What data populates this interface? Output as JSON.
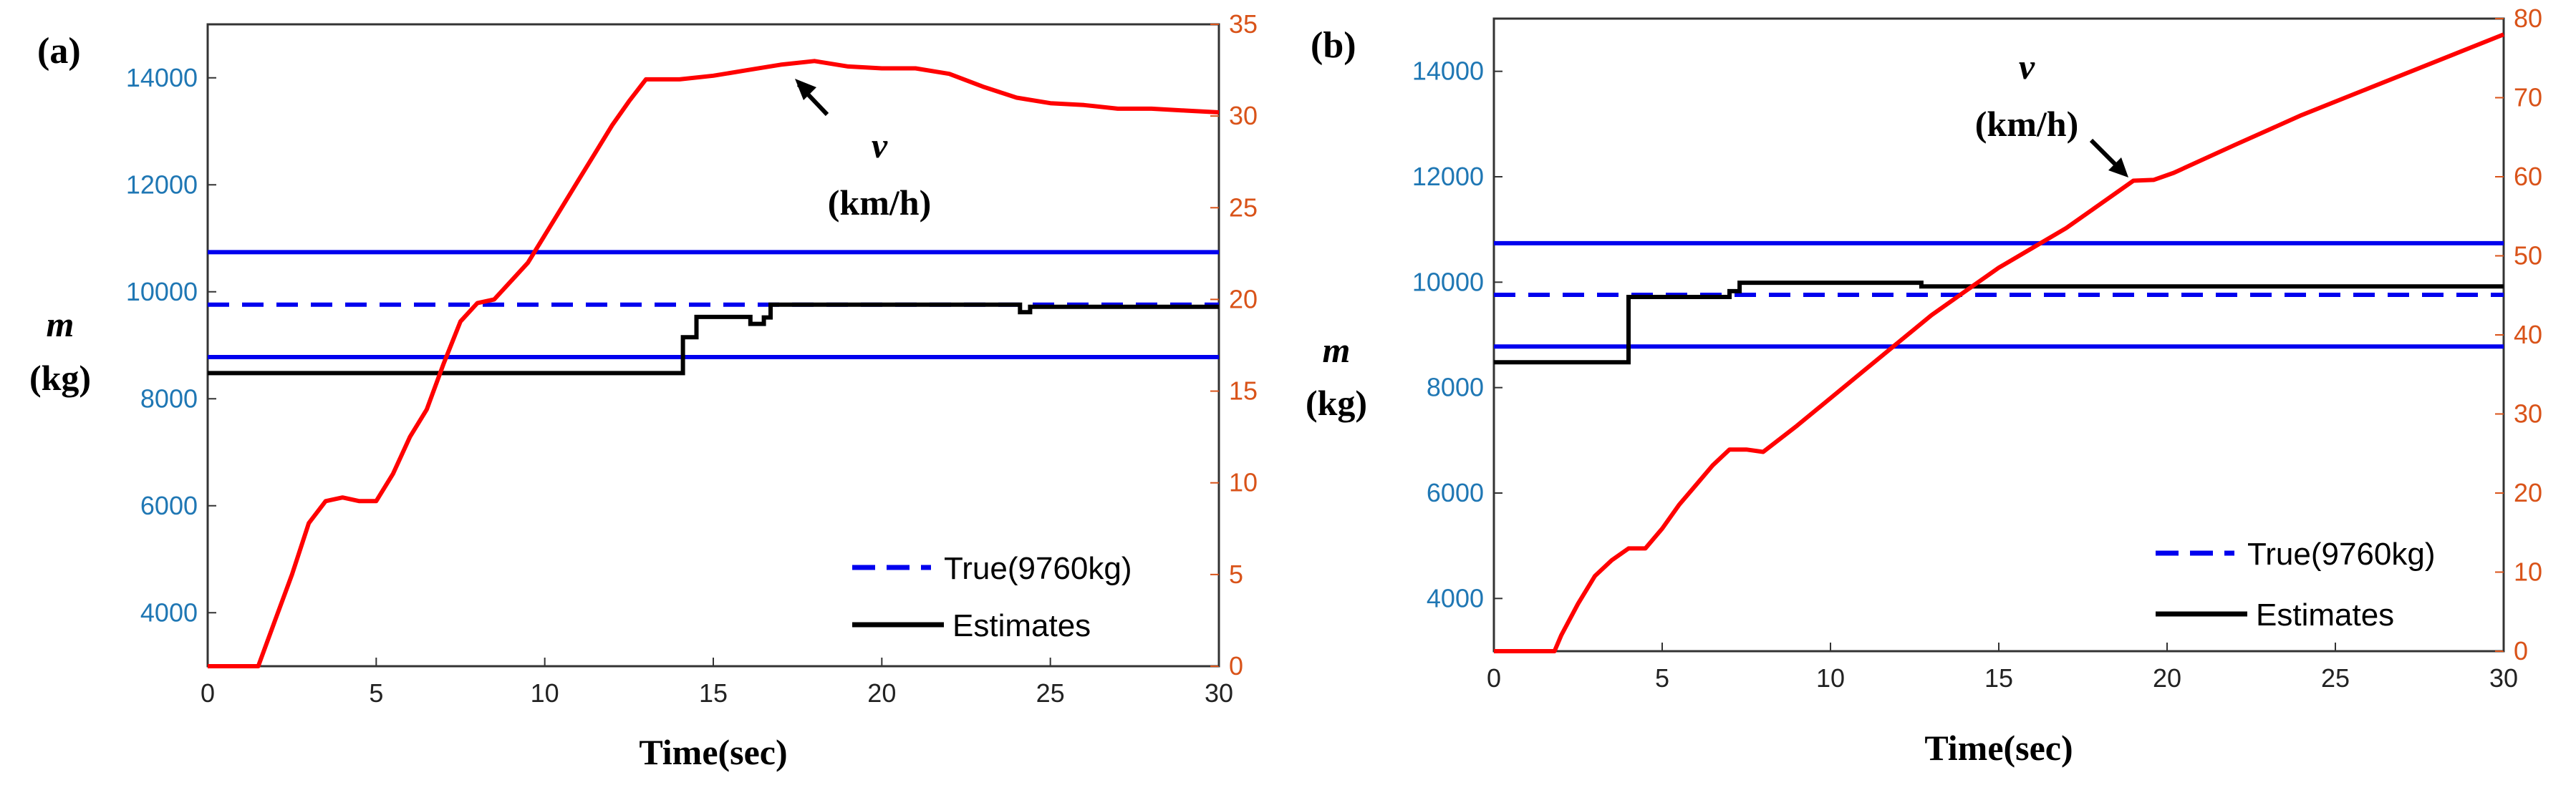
{
  "colors": {
    "bound": "#0000ee",
    "true": "#0000ee",
    "estimate": "#000000",
    "velocity": "#ff0000",
    "left_axis": "#1f77b4",
    "right_axis": "#d95319"
  },
  "chart_data": [
    {
      "type": "line",
      "panel_label": "(a)",
      "xlabel": "Time(sec)",
      "ylabel_var": "m",
      "ylabel_unit": "(kg)",
      "xlim": [
        0,
        30
      ],
      "ylim": [
        3000,
        15000
      ],
      "ylim_right": [
        0,
        35
      ],
      "x_ticks": [
        "0",
        "5",
        "10",
        "15",
        "20",
        "25",
        "30"
      ],
      "y_ticks": [
        "4000",
        "6000",
        "8000",
        "10000",
        "12000",
        "14000"
      ],
      "y_right_ticks": [
        "0",
        "5",
        "10",
        "15",
        "20",
        "25",
        "30",
        "35"
      ],
      "annotation": {
        "var": "v",
        "unit": "(km/h)",
        "x": 17.4,
        "y_right": 32.2
      },
      "legend": {
        "placement": "bottom-right",
        "entries": [
          "True(9760kg)",
          "Estimates"
        ]
      },
      "bounds": [
        10740,
        8780
      ],
      "true_value": 9760,
      "estimate": {
        "x": [
          0,
          14.1,
          14.1,
          14.5,
          14.5,
          16.1,
          16.1,
          16.5,
          16.5,
          16.7,
          16.7,
          24.1,
          24.1,
          24.4,
          24.4,
          30
        ],
        "y": [
          8480,
          8480,
          9150,
          9150,
          9530,
          9530,
          9400,
          9400,
          9520,
          9520,
          9760,
          9760,
          9620,
          9620,
          9720,
          9720
        ]
      },
      "velocity": {
        "x": [
          0,
          1.5,
          2.0,
          2.5,
          3.0,
          3.5,
          4.0,
          4.5,
          5.0,
          5.5,
          6.0,
          6.5,
          7.0,
          7.5,
          8.0,
          8.5,
          9.0,
          9.5,
          10.0,
          10.5,
          11.0,
          11.5,
          12.0,
          12.5,
          13.0,
          14.0,
          15.0,
          16.0,
          17.0,
          18.0,
          19.0,
          20.0,
          21.0,
          22.0,
          23.0,
          24.0,
          25.0,
          26.0,
          27.0,
          28.0,
          29.0,
          30.0
        ],
        "y": [
          0,
          0,
          2.5,
          5.0,
          7.8,
          9.0,
          9.2,
          9.0,
          9.0,
          10.5,
          12.5,
          14.0,
          16.5,
          18.8,
          19.8,
          20.0,
          21.0,
          22.0,
          23.5,
          25.0,
          26.5,
          28.0,
          29.5,
          30.8,
          32.0,
          32.0,
          32.2,
          32.5,
          32.8,
          33.0,
          32.7,
          32.6,
          32.6,
          32.3,
          31.6,
          31.0,
          30.7,
          30.6,
          30.4,
          30.4,
          30.3,
          30.2
        ]
      }
    },
    {
      "type": "line",
      "panel_label": "(b)",
      "xlabel": "Time(sec)",
      "ylabel_var": "m",
      "ylabel_unit": "(kg)",
      "xlim": [
        0,
        30
      ],
      "ylim": [
        3000,
        15000
      ],
      "ylim_right": [
        0,
        80
      ],
      "x_ticks": [
        "0",
        "5",
        "10",
        "15",
        "20",
        "25",
        "30"
      ],
      "y_ticks": [
        "4000",
        "6000",
        "8000",
        "10000",
        "12000",
        "14000"
      ],
      "y_right_ticks": [
        "0",
        "10",
        "20",
        "30",
        "40",
        "50",
        "60",
        "70",
        "80"
      ],
      "annotation": {
        "var": "v",
        "unit": "(km/h)",
        "x": 19.2,
        "y_right": 59.8
      },
      "legend": {
        "placement": "bottom-right",
        "entries": [
          "True(9760kg)",
          "Estimates"
        ]
      },
      "bounds": [
        10740,
        8780
      ],
      "true_value": 9760,
      "estimate": {
        "x": [
          0,
          4.0,
          4.0,
          7.0,
          7.0,
          7.3,
          7.3,
          12.7,
          12.7,
          30
        ],
        "y": [
          8480,
          8480,
          9720,
          9720,
          9830,
          9830,
          9990,
          9990,
          9920,
          9920
        ]
      },
      "velocity": {
        "x": [
          0,
          1.8,
          2.0,
          2.5,
          3.0,
          3.5,
          4.0,
          4.5,
          5.0,
          5.5,
          6.0,
          6.5,
          7.0,
          7.5,
          8.0,
          9.0,
          10.0,
          11.0,
          12.0,
          13.0,
          14.0,
          15.0,
          16.0,
          17.0,
          18.0,
          19.0,
          19.6,
          20.2,
          22.0,
          24.0,
          26.0,
          28.0,
          30.0
        ],
        "y": [
          0,
          0,
          2.0,
          6.0,
          9.5,
          11.5,
          13.0,
          13.0,
          15.5,
          18.5,
          21.0,
          23.5,
          25.5,
          25.5,
          25.2,
          28.5,
          32.0,
          35.5,
          39.0,
          42.5,
          45.5,
          48.5,
          51.0,
          53.5,
          56.5,
          59.5,
          59.6,
          60.5,
          64.0,
          67.8,
          71.2,
          74.6,
          78.0
        ]
      }
    }
  ]
}
